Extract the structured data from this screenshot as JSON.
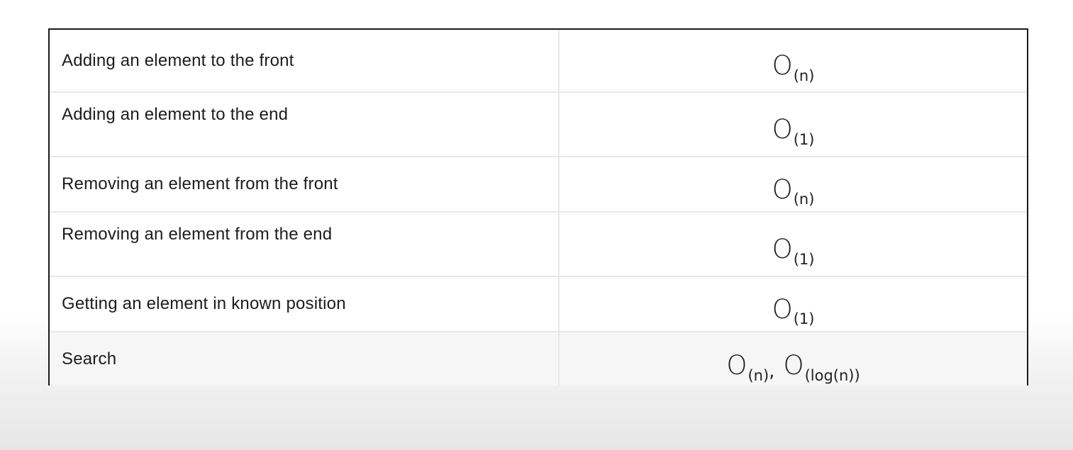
{
  "table": {
    "rows": [
      {
        "operation": "Adding an element to the front",
        "complexity": [
          {
            "base": "O",
            "sub": "(n)"
          }
        ]
      },
      {
        "operation": "Adding an element to the end",
        "complexity": [
          {
            "base": "O",
            "sub": "(1)"
          }
        ]
      },
      {
        "operation": "Removing an element from the front",
        "complexity": [
          {
            "base": "O",
            "sub": "(n)"
          }
        ]
      },
      {
        "operation": "Removing an element from the end",
        "complexity": [
          {
            "base": "O",
            "sub": "(1)"
          }
        ]
      },
      {
        "operation": "Getting an element in known position",
        "complexity": [
          {
            "base": "O",
            "sub": "(1)"
          }
        ]
      },
      {
        "operation": "Search",
        "complexity": [
          {
            "base": "O",
            "sub": "(n)"
          },
          {
            "base": "O",
            "sub": "(log(n))"
          }
        ]
      }
    ],
    "separator": ","
  }
}
